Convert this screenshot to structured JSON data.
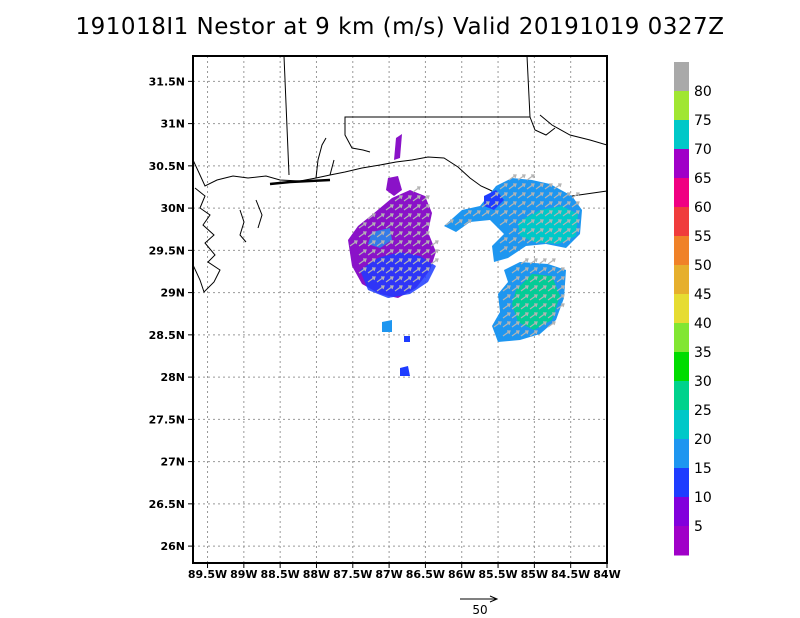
{
  "title": "191018I1 Nestor at 9 km (m/s) Valid 20191019 0327Z",
  "map": {
    "lon_ticks": [
      "89.5W",
      "89W",
      "88.5W",
      "88W",
      "87.5W",
      "87W",
      "86.5W",
      "86W",
      "85.5W",
      "85W",
      "84.5W",
      "84W"
    ],
    "lat_ticks": [
      "31.5N",
      "31N",
      "30.5N",
      "30N",
      "29.5N",
      "29N",
      "28.5N",
      "28N",
      "27.5N",
      "27N",
      "26.5N",
      "26N"
    ],
    "lon_range": [
      -89.7,
      -84.0
    ],
    "lat_range": [
      25.8,
      31.8
    ],
    "grid": "dotted"
  },
  "colorbar": {
    "labels": [
      "80",
      "75",
      "70",
      "65",
      "60",
      "55",
      "50",
      "45",
      "40",
      "35",
      "30",
      "25",
      "20",
      "15",
      "10",
      "5"
    ],
    "colors": [
      "#a9a9a9",
      "#a0e632",
      "#00c8c8",
      "#a000c8",
      "#f00082",
      "#f03c3c",
      "#f08228",
      "#e6af2d",
      "#e6dc32",
      "#82e632",
      "#00dc00",
      "#00d28c",
      "#00c8c8",
      "#1e96f0",
      "#1e3cff",
      "#8200dc",
      "#a000c8"
    ]
  },
  "scale_arrow": {
    "label": "50"
  },
  "wind_fields": [
    {
      "name": "west-cluster",
      "color": "#8a12c8"
    },
    {
      "name": "east-cluster",
      "color": "#1e96f0"
    },
    {
      "name": "southeast-cluster",
      "color": "#00c8c8"
    }
  ]
}
